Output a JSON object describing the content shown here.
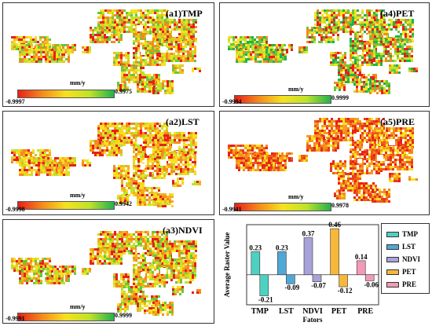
{
  "panels": [
    {
      "title": "(a1)TMP",
      "units": "mm/y",
      "min_label": "-0.9997",
      "max_label": "0.9975"
    },
    {
      "title": "(a2)LST",
      "units": "mm/y",
      "min_label": "-0.9998",
      "max_label": "0.9942"
    },
    {
      "title": "(a3)NDVI",
      "units": "mm/y",
      "min_label": "-0.9991",
      "max_label": "0.9999"
    },
    {
      "title": "(a4)PET",
      "units": "mm/y",
      "min_label": "-0.9994",
      "max_label": "0.9999"
    },
    {
      "title": "(a5)PRE",
      "units": "mm/y",
      "min_label": "-0.9941",
      "max_label": "0.9978"
    }
  ],
  "colorbar_colors": [
    "#e8201a",
    "#f58a1c",
    "#f6e21e",
    "#bde32a",
    "#22b14c"
  ],
  "chart_data": {
    "type": "bar",
    "ylabel": "Average Raster Value",
    "xlabel": "Fators",
    "categories": [
      "TMP",
      "LST",
      "NDVI",
      "PET",
      "PRE"
    ],
    "positive": [
      0.23,
      0.23,
      0.37,
      0.46,
      0.14
    ],
    "negative": [
      -0.21,
      -0.09,
      -0.07,
      -0.12,
      -0.06
    ],
    "positive_labels": [
      "0.23",
      "0.23",
      "0.37",
      "0.46",
      "0.14"
    ],
    "negative_labels": [
      "-0.21",
      "-0.09",
      "-0.07",
      "-0.12",
      "-0.06"
    ],
    "colors": [
      "#4fd1c1",
      "#4fa8d6",
      "#a9a2d9",
      "#f6b73a",
      "#f39bb6"
    ],
    "legend": [
      "TMP",
      "LST",
      "NDVI",
      "PET",
      "PRE"
    ],
    "legend_position": "right",
    "ylim": [
      -0.3,
      0.5
    ],
    "grid": false
  }
}
